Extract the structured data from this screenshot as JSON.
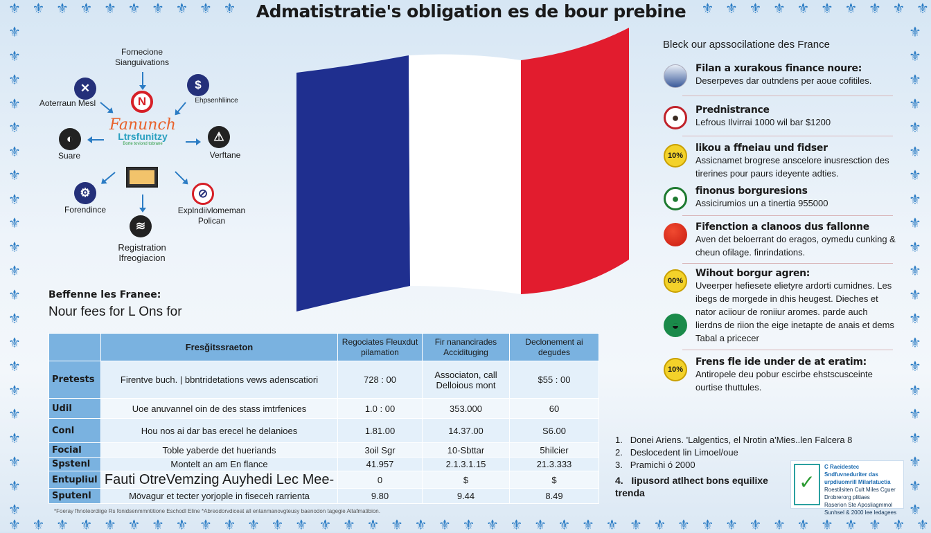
{
  "title": "Admatistratie's obligation es de bour prebine",
  "border_icon": "fleur-de-lis-icon",
  "colors": {
    "border": "#2b7cc4",
    "flag_blue": "#1f2f8f",
    "flag_white": "#ffffff",
    "flag_red": "#e21c2e",
    "table_header": "#7ab2e0"
  },
  "diagram": {
    "top": "Fornecione Sianguivations",
    "center_line1": "Fanunch",
    "center_line2": "Ltrsfunitzy",
    "center_sub": "Borte toviond tobrane",
    "nodes": [
      {
        "label": "Aoterraun Mesl",
        "icon": "x-icon"
      },
      {
        "label": "Ehpsenhliince",
        "icon": "dollar-icon"
      },
      {
        "label": "Suare",
        "icon": "globe-icon"
      },
      {
        "label": "Verftane",
        "icon": "warning-icon"
      },
      {
        "label": "Forendince",
        "icon": "gear-icon"
      },
      {
        "label": "Explndiivlomeman Polican",
        "icon": "prohibited-icon"
      },
      {
        "label": "Registration Ifreogiacion",
        "icon": "wifi-icon"
      }
    ]
  },
  "left_heading": "Beffenne les Franee:",
  "left_sub": "Nour fees for L Ons for",
  "right": {
    "heading": "Bleck our apssocilatione des France",
    "items": [
      {
        "title": "Filan a xurakous finance noure:",
        "text": "Deserpeves dar outndens per aoue cofitiles.",
        "icon": "globe-icon"
      },
      {
        "title": "Prednistrance",
        "text": "Lefrous Ilvirrai 1000 wil bar $1200",
        "icon": "person-icon"
      },
      {
        "title": "likou a ffneiau und fidser",
        "text": "Assicnamet brogrese anscelore inusresction des tirerines pour paurs ideyente adties.",
        "icon": "percent-badge-icon",
        "badge": "10%"
      },
      {
        "title": "finonus borguresions",
        "text": "Assicirumios un a tinertia 955000",
        "icon": "person-icon"
      },
      {
        "title": "Fifenction a clanoos dus fallonne",
        "text": "Aven det beloerrant do eragos, oymedu cunking & cheun ofilage. finrindations.",
        "icon": "red-dot-icon"
      },
      {
        "title": "Wihout borgur agren:",
        "text": "Uveerper hefiesete elietyre ardorti cumidnes. Les ibegs de morgede in dhis heugest. Dieches et nator aciiour de roniiur aromes. parde auch lierdns de riion the eige inetapte de anais et dems Tabal a pricecer",
        "icon": "percent-badge-icon",
        "badge": "00%"
      },
      {
        "title": "Frens fle ide under de at eratim:",
        "text": "Antiropele deu pobur escirbe ehstscusceinte ourtise thuttules.",
        "icon": "percent-badge-icon",
        "badge": "10%"
      }
    ]
  },
  "table": {
    "headers": [
      "",
      "Fresǧitssraeton",
      "Regociates Fleuxdut pilamation",
      "Fir nanancirades Accidituging",
      "Declonement ai degudes"
    ],
    "rows": [
      [
        "Pretests",
        "Firentve buch. | bbntridetations vews adenscatiori",
        "728 : 00",
        "Associaton, call Delloious mont",
        "$55 : 00"
      ],
      [
        "Udil",
        "Uoe anuvannel oin de des stass imtrfenices",
        "1.0 : 00",
        "353.000",
        "60"
      ],
      [
        "Conl",
        "Hou nos ai dar bas erecel he delanioes",
        "1.81.00",
        "14.37.00",
        "S6.00"
      ],
      [
        "Focial",
        "Toble yaberde det hueriands",
        "3oil Sgr",
        "10-Sbttar",
        "5hilcier"
      ],
      [
        "Spstenl",
        "Montelt an am En flance",
        "41.957",
        "2.1.3.1.15",
        "21.3.333"
      ],
      [
        "Entupliul",
        "Fauti OtreVemzing Auyhedi Lec Mee-",
        "0",
        "$",
        "$"
      ],
      [
        "Sputenl",
        "Mövagur et tecter yorjople in fiseceh rarrienta",
        "9.80",
        "9.44",
        "8.49"
      ]
    ]
  },
  "footnote": "*Foeray fhnoteordiige Rs fonidsenmmntitione Eschodl Eline   *Abreodorvdiceat all entanmanovgteusy baenodon tagegie Altafmatibion.",
  "numbered": [
    "Donei Ariens. 'Lalgentics, el Nrotin a'Mies..len Falcera 8",
    "Deslocedent lin Limoel/oue",
    "Pramichi ó 2000",
    "Iipusord atlhect bons equilixe trenda"
  ],
  "badge": {
    "title": "C Raeidestec Sndfuvneduriter das urpdiuomrill Milarlatuctia",
    "lines": [
      "Roestilsiten Cult Miles Cguer",
      "Drobrerorg plitiaes",
      "Raserion Ste Aposliagmmol",
      "Sunhsel & 2000 lee ledagees"
    ]
  }
}
